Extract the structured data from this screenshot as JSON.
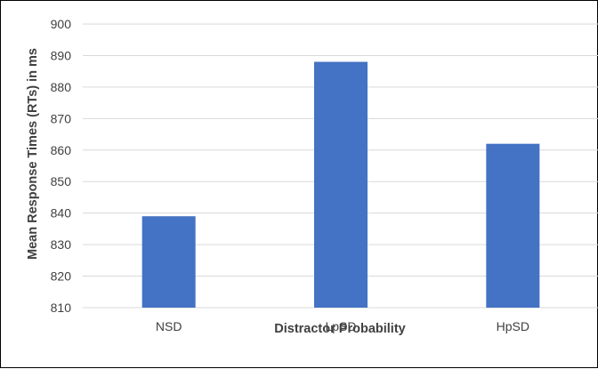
{
  "chart_data": {
    "type": "bar",
    "categories": [
      "NSD",
      "LpSD",
      "HpSD"
    ],
    "values": [
      839,
      888,
      862
    ],
    "title": "",
    "xlabel": "Distractor Probability",
    "ylabel": "Mean Response Times (RTs) in ms",
    "ylim": [
      810,
      900
    ],
    "yticks": [
      810,
      820,
      830,
      840,
      850,
      860,
      870,
      880,
      890,
      900
    ],
    "grid": true,
    "legend": "none",
    "bar_color": "#4472C4",
    "grid_color": "#D9D9D9"
  }
}
